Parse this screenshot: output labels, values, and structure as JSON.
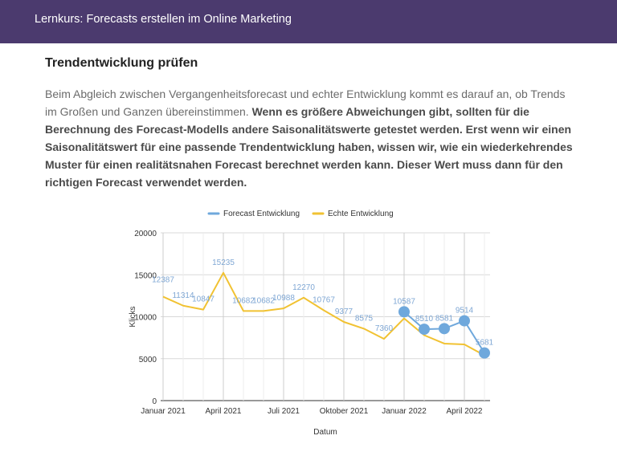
{
  "header": {
    "title": "Lernkurs: Forecasts erstellen im Online Marketing"
  },
  "article": {
    "heading": "Trendentwicklung prüfen",
    "intro": "Beim Abgleich zwischen Vergangenheitsforecast und echter Entwicklung kommt es darauf an, ob Trends im Großen und Ganzen übereinstimmen.",
    "bold": "Wenn es größere Abweichungen gibt, sollten für die Berechnung des Forecast-Modells andere Saisonalitätswerte getestet werden. Erst wenn wir einen Saisonalitätswert für eine passende Trendentwicklung haben, wissen wir, wie ein wiederkehrendes Muster für einen realitätsnahen Forecast berechnet werden kann. Dieser Wert muss dann für den richtigen Forecast verwendet werden."
  },
  "chart_data": {
    "type": "line",
    "xlabel": "Datum",
    "ylabel": "Klicks",
    "ylim": [
      0,
      20000
    ],
    "yticks": [
      0,
      5000,
      10000,
      15000,
      20000
    ],
    "xtick_labels": [
      "Januar 2021",
      "April 2021",
      "Juli 2021",
      "Oktober 2021",
      "Januar 2022",
      "April 2022"
    ],
    "xtick_index": [
      0,
      3,
      6,
      9,
      12,
      15
    ],
    "legend_position": "top",
    "grid": true,
    "series": [
      {
        "name": "Forecast Entwicklung",
        "color": "#6fa8dc",
        "start_index": 12,
        "values": [
          10587,
          8510,
          8581,
          9514,
          5681
        ]
      },
      {
        "name": "Echte Entwicklung",
        "color": "#f1c232",
        "start_index": 0,
        "values": [
          12387,
          11314,
          10847,
          15235,
          10682,
          10682,
          10988,
          12270,
          10767,
          9377,
          8575,
          7360,
          9800,
          7800,
          6800,
          6700,
          5400
        ]
      }
    ],
    "data_labels": [
      {
        "index": 0,
        "text": "12387"
      },
      {
        "index": 1,
        "text": "11314"
      },
      {
        "index": 2,
        "text": "10847"
      },
      {
        "index": 3,
        "text": "15235"
      },
      {
        "index": 4,
        "text": "10682"
      },
      {
        "index": 5,
        "text": "10682"
      },
      {
        "index": 6,
        "text": "10988"
      },
      {
        "index": 7,
        "text": "12270"
      },
      {
        "index": 8,
        "text": "10767"
      },
      {
        "index": 9,
        "text": "9377"
      },
      {
        "index": 10,
        "text": "8575"
      },
      {
        "index": 11,
        "text": "7360"
      },
      {
        "index": 12,
        "text": "10587"
      },
      {
        "index": 13,
        "text": "8510"
      },
      {
        "index": 14,
        "text": "8581"
      },
      {
        "index": 15,
        "text": "9514"
      },
      {
        "index": 16,
        "text": "5681"
      }
    ]
  }
}
